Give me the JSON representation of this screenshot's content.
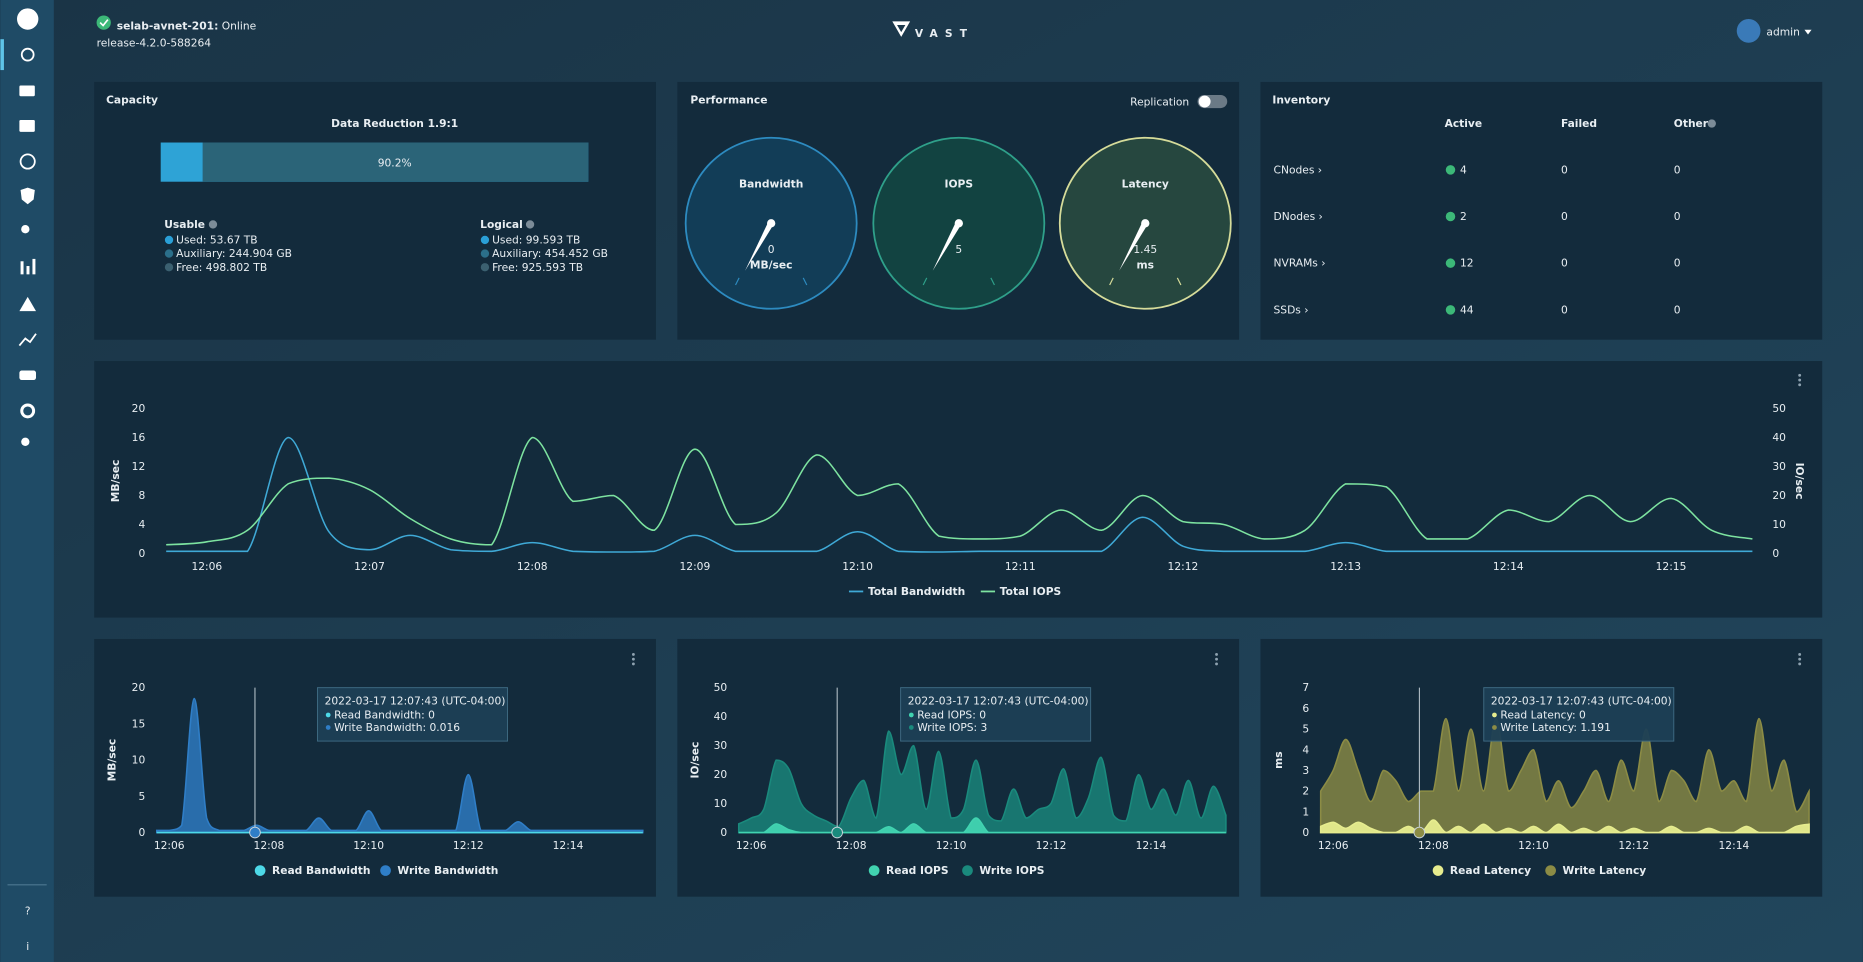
{
  "header": {
    "cluster": "selab-avnet-201:",
    "status": "Online",
    "release": "release-4.2.0-588264",
    "logo": "VAST",
    "user": "admin"
  },
  "sidebar": {
    "help": "?",
    "info": "i"
  },
  "capacity": {
    "title": "Capacity",
    "reduction": "Data Reduction 1.9:1",
    "percent": 90.2,
    "percent_label": "90.2%",
    "usable": {
      "title": "Usable",
      "items": [
        "Used: 53.67 TB",
        "Auxiliary: 244.904 GB",
        "Free: 498.802 TB"
      ]
    },
    "logical": {
      "title": "Logical",
      "items": [
        "Used: 99.593 TB",
        "Auxiliary: 454.452 GB",
        "Free: 925.593 TB"
      ]
    }
  },
  "performance": {
    "title": "Performance",
    "toggle": "Replication",
    "gauges": [
      {
        "name": "Bandwidth",
        "value": 0,
        "unit": "MB/sec"
      },
      {
        "name": "IOPS",
        "value": 5
      },
      {
        "name": "Latency",
        "value": 1.45,
        "unit": "ms"
      }
    ]
  },
  "inventory": {
    "title": "Inventory",
    "columns": [
      "Active",
      "Failed",
      "Other"
    ],
    "rows": [
      {
        "name": "CNodes ›",
        "values": [
          4,
          0,
          0
        ]
      },
      {
        "name": "DNodes ›",
        "values": [
          2,
          0,
          0
        ]
      },
      {
        "name": "NVRAMs ›",
        "values": [
          12,
          0,
          0
        ]
      },
      {
        "name": "SSDs ›",
        "values": [
          44,
          0,
          0
        ]
      }
    ]
  },
  "charts": [
    {
      "type": "line",
      "ylabel": "MB/sec",
      "y2label": "IO/sec",
      "xlim": [
        725.68,
        735.55
      ],
      "xticks": [
        {
          "value": 726,
          "label": "12:06"
        },
        {
          "value": 727,
          "label": "12:07"
        },
        {
          "value": 728,
          "label": "12:08"
        },
        {
          "value": 729,
          "label": "12:09"
        },
        {
          "value": 730,
          "label": "12:10"
        },
        {
          "value": 731,
          "label": "12:11"
        },
        {
          "value": 732,
          "label": "12:12"
        },
        {
          "value": 733,
          "label": "12:13"
        },
        {
          "value": 734,
          "label": "12:14"
        },
        {
          "value": 735,
          "label": "12:15"
        }
      ],
      "ylim": [
        0,
        20
      ],
      "yticks": [
        0,
        4,
        8,
        12,
        16,
        20
      ],
      "y2lim": [
        0,
        50
      ],
      "y2ticks": [
        0,
        10,
        20,
        30,
        40,
        50
      ],
      "x": [
        725.75,
        726,
        726.25,
        726.5,
        726.75,
        727,
        727.25,
        727.5,
        727.75,
        728,
        728.25,
        728.5,
        728.75,
        729,
        729.25,
        729.5,
        729.75,
        730,
        730.25,
        730.5,
        730.75,
        731,
        731.25,
        731.5,
        731.75,
        732,
        732.25,
        732.5,
        732.75,
        733,
        733.25,
        733.5,
        733.75,
        734,
        734.25,
        734.5,
        734.75,
        735,
        735.25,
        735.5
      ],
      "series": [
        {
          "name": "Total Bandwidth",
          "color": "#3fa9d6",
          "values": [
            0.3,
            0.3,
            0.3,
            16,
            3,
            0.5,
            2.5,
            0.5,
            0.3,
            1.5,
            0.3,
            0.2,
            0.3,
            2.5,
            0.3,
            0.3,
            0.3,
            3,
            0.3,
            0.2,
            0.3,
            0.3,
            0.3,
            0.3,
            5,
            1,
            0.3,
            0.3,
            0.3,
            1.5,
            0.3,
            0.3,
            0.3,
            0.3,
            0.3,
            0.3,
            0.3,
            0.3,
            0.3,
            0.3
          ]
        },
        {
          "name": "Total IOPS",
          "color": "#7de3a0",
          "axis": "y2",
          "values": [
            3,
            4,
            8,
            24,
            26,
            22,
            12,
            5,
            3,
            40,
            18,
            20,
            8,
            36,
            10,
            14,
            34,
            20,
            24,
            6,
            5,
            6,
            15,
            8,
            20,
            11,
            10,
            5,
            8,
            24,
            23,
            5,
            5,
            15,
            11,
            20,
            11,
            19,
            8,
            5
          ]
        }
      ]
    },
    {
      "type": "area",
      "ylabel": "MB/sec",
      "xlim": [
        725.71,
        735.55
      ],
      "xticks": [
        {
          "value": 726,
          "label": "12:06"
        },
        {
          "value": 728,
          "label": "12:08"
        },
        {
          "value": 730,
          "label": "12:10"
        },
        {
          "value": 732,
          "label": "12:12"
        },
        {
          "value": 734,
          "label": "12:14"
        }
      ],
      "ylim": [
        0,
        20
      ],
      "yticks": [
        0,
        5,
        10,
        15,
        20
      ],
      "cursor_x": 727.72,
      "tooltip": {
        "time": "2022-03-17 12:07:43 (UTC-04:00)",
        "lines": [
          "Read Bandwidth: 0",
          "Write Bandwidth: 0.016"
        ]
      },
      "x": [
        725.75,
        726,
        726.25,
        726.5,
        726.75,
        727,
        727.25,
        727.5,
        727.75,
        728,
        728.25,
        728.5,
        728.75,
        729,
        729.25,
        729.5,
        729.75,
        730,
        730.25,
        730.5,
        730.75,
        731,
        731.25,
        731.5,
        731.75,
        732,
        732.25,
        732.5,
        732.75,
        733,
        733.25,
        733.5,
        733.75,
        734,
        734.25,
        734.5,
        734.75,
        735,
        735.25,
        735.5
      ],
      "series": [
        {
          "name": "Read Bandwidth",
          "color": "#4dd9e8",
          "values": [
            0,
            0,
            0,
            0,
            0,
            0,
            0,
            0,
            0,
            0,
            0,
            0,
            0,
            0,
            0,
            0,
            0,
            0,
            0,
            0,
            0,
            0,
            0,
            0,
            0,
            0,
            0,
            0,
            0,
            0,
            0,
            0,
            0,
            0,
            0,
            0,
            0,
            0,
            0,
            0
          ]
        },
        {
          "name": "Write Bandwidth",
          "color": "#2f7ec7",
          "values": [
            0.3,
            0.3,
            1,
            18.5,
            2,
            0.3,
            0.3,
            0.3,
            1,
            0.3,
            0.3,
            0.3,
            0.3,
            2,
            0.3,
            0.3,
            0.3,
            3,
            0.3,
            0.3,
            0.3,
            0.3,
            0.3,
            0.3,
            0.3,
            8,
            0.3,
            0.3,
            0.3,
            1.5,
            0.3,
            0.3,
            0.3,
            0.3,
            0.3,
            0.3,
            0.3,
            0.3,
            0.3,
            0.3
          ]
        }
      ]
    },
    {
      "type": "area",
      "ylabel": "IO/sec",
      "xlim": [
        725.71,
        735.55
      ],
      "xticks": [
        {
          "value": 726,
          "label": "12:06"
        },
        {
          "value": 728,
          "label": "12:08"
        },
        {
          "value": 730,
          "label": "12:10"
        },
        {
          "value": 732,
          "label": "12:12"
        },
        {
          "value": 734,
          "label": "12:14"
        }
      ],
      "ylim": [
        0,
        50
      ],
      "yticks": [
        0,
        10,
        20,
        30,
        40,
        50
      ],
      "cursor_x": 727.72,
      "tooltip": {
        "time": "2022-03-17 12:07:43 (UTC-04:00)",
        "lines": [
          "Read IOPS: 0",
          "Write IOPS: 3"
        ]
      },
      "x": [
        725.75,
        726,
        726.25,
        726.5,
        726.75,
        727,
        727.25,
        727.5,
        727.75,
        728,
        728.25,
        728.5,
        728.75,
        729,
        729.25,
        729.5,
        729.75,
        730,
        730.25,
        730.5,
        730.75,
        731,
        731.25,
        731.5,
        731.75,
        732,
        732.25,
        732.5,
        732.75,
        733,
        733.25,
        733.5,
        733.75,
        734,
        734.25,
        734.5,
        734.75,
        735,
        735.25,
        735.5
      ],
      "series": [
        {
          "name": "Read IOPS",
          "color": "#41d3b0",
          "values": [
            0,
            0,
            0,
            3,
            1,
            0,
            0,
            0,
            0,
            0,
            0,
            0,
            2,
            0,
            3,
            0,
            0,
            0,
            0,
            5,
            0,
            0,
            0,
            0,
            0,
            0,
            0,
            0,
            0,
            0,
            0,
            0,
            0,
            0,
            0,
            0,
            0,
            0,
            0,
            0
          ]
        },
        {
          "name": "Write IOPS",
          "color": "#1a8a7d",
          "values": [
            3,
            5,
            8,
            25,
            22,
            10,
            6,
            4,
            2,
            12,
            18,
            5,
            35,
            20,
            30,
            8,
            28,
            5,
            8,
            25,
            6,
            4,
            15,
            5,
            8,
            10,
            22,
            5,
            12,
            26,
            6,
            4,
            20,
            8,
            15,
            6,
            18,
            5,
            16,
            6
          ]
        }
      ]
    },
    {
      "type": "area",
      "ylabel": "ms",
      "xlim": [
        725.71,
        735.55
      ],
      "xticks": [
        {
          "value": 726,
          "label": "12:06"
        },
        {
          "value": 728,
          "label": "12:08"
        },
        {
          "value": 730,
          "label": "12:10"
        },
        {
          "value": 732,
          "label": "12:12"
        },
        {
          "value": 734,
          "label": "12:14"
        }
      ],
      "ylim": [
        0,
        7
      ],
      "yticks": [
        0,
        1,
        2,
        3,
        4,
        5,
        6,
        7
      ],
      "cursor_x": 727.72,
      "tooltip": {
        "time": "2022-03-17 12:07:43 (UTC-04:00)",
        "lines": [
          "Read Latency: 0",
          "Write Latency: 1.191"
        ]
      },
      "x": [
        725.75,
        726,
        726.25,
        726.5,
        726.75,
        727,
        727.25,
        727.5,
        727.75,
        728,
        728.25,
        728.5,
        728.75,
        729,
        729.25,
        729.5,
        729.75,
        730,
        730.25,
        730.5,
        730.75,
        731,
        731.25,
        731.5,
        731.75,
        732,
        732.25,
        732.5,
        732.75,
        733,
        733.25,
        733.5,
        733.75,
        734,
        734.25,
        734.5,
        734.75,
        735,
        735.25,
        735.5
      ],
      "series": [
        {
          "name": "Read Latency",
          "color": "#e6ec8e",
          "values": [
            0.3,
            0.5,
            0.2,
            0.5,
            0.2,
            0,
            0,
            0.3,
            0,
            0.6,
            0,
            0.3,
            0,
            0.4,
            0,
            0.2,
            0,
            0.3,
            0,
            0.4,
            0,
            0.2,
            0,
            0.3,
            0,
            0.2,
            0,
            0,
            0.3,
            0,
            0,
            0.2,
            0,
            0,
            0.3,
            0,
            0,
            0,
            0.3,
            0.4
          ]
        },
        {
          "name": "Write Latency",
          "color": "#8c8c45",
          "values": [
            2,
            3,
            4.5,
            3,
            1.5,
            3,
            2.5,
            1.5,
            2,
            2,
            5.5,
            2,
            5,
            2,
            5.5,
            2,
            3,
            4,
            1.5,
            2.5,
            1.2,
            2,
            3,
            1.5,
            3.5,
            2,
            5,
            1.5,
            3,
            2.5,
            1.5,
            4,
            2,
            2.5,
            1.5,
            5.5,
            2,
            3.5,
            1,
            2
          ]
        }
      ]
    }
  ]
}
